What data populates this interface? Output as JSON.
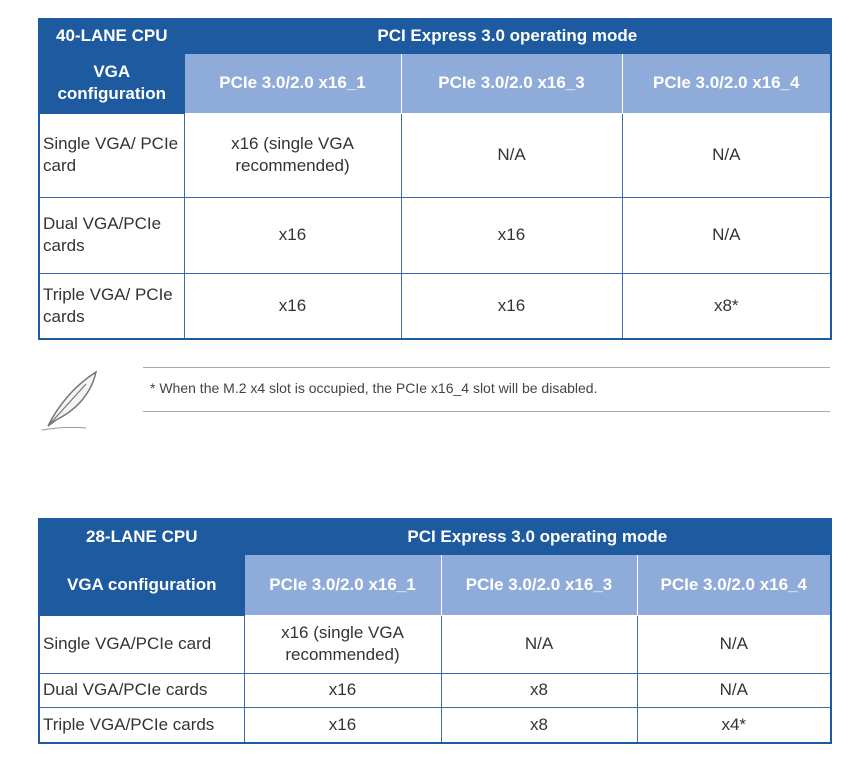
{
  "table_1": {
    "header": [
      "40-LANE CPU",
      "PCI Express 3.0 operating mode"
    ],
    "columns": [
      "VGA configuration",
      "PCIe 3.0/2.0 x16_1",
      "PCIe 3.0/2.0 x16_3",
      "PCIe 3.0/2.0 x16_4"
    ],
    "rows": [
      [
        "Single VGA/ PCIe card",
        "x16 (single VGA recommended)",
        "N/A",
        "N/A"
      ],
      [
        "Dual VGA/PCIe cards",
        "x16",
        "x16",
        "N/A"
      ],
      [
        "Triple VGA/ PCIe cards",
        "x16",
        "x16",
        "x8*"
      ]
    ]
  },
  "note": "* When the M.2 x4 slot is occupied, the PCIe x16_4 slot will be disabled.",
  "table_2": {
    "header": [
      "28-LANE CPU",
      "PCI Express 3.0 operating mode"
    ],
    "columns": [
      "VGA configuration",
      "PCIe 3.0/2.0 x16_1",
      "PCIe 3.0/2.0 x16_3",
      "PCIe 3.0/2.0 x16_4"
    ],
    "rows": [
      [
        "Single VGA/PCIe card",
        "x16 (single VGA recommended)",
        "N/A",
        "N/A"
      ],
      [
        "Dual VGA/PCIe cards",
        "x16",
        "x8",
        "N/A"
      ],
      [
        "Triple VGA/PCIe cards",
        "x16",
        "x8",
        "x4*"
      ]
    ]
  }
}
